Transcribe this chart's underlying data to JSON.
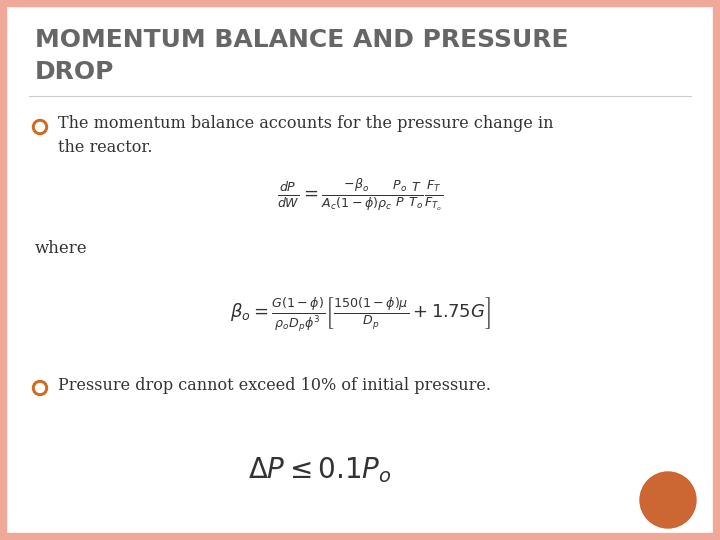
{
  "title_line1": "MOMENTUM BALANCE AND PRESSURE",
  "title_line2": "DROP",
  "title_color": "#666666",
  "title_fontsize": 18,
  "background_color": "#ffffff",
  "border_color": "#F0A898",
  "bullet_color": "#D2691E",
  "bullet_ring_color": "#D2691E",
  "bullet1_text": "The momentum balance accounts for the pressure change in\nthe reactor.",
  "where_text": "where",
  "bullet2_text": "Pressure drop cannot exceed 10% of initial pressure.",
  "text_color": "#333333",
  "eq_color": "#333333",
  "text_fontsize": 11.5,
  "eq1_fontsize": 13,
  "eq2_fontsize": 13,
  "eq3_fontsize": 20,
  "orange_circle_color": "#CC6633"
}
